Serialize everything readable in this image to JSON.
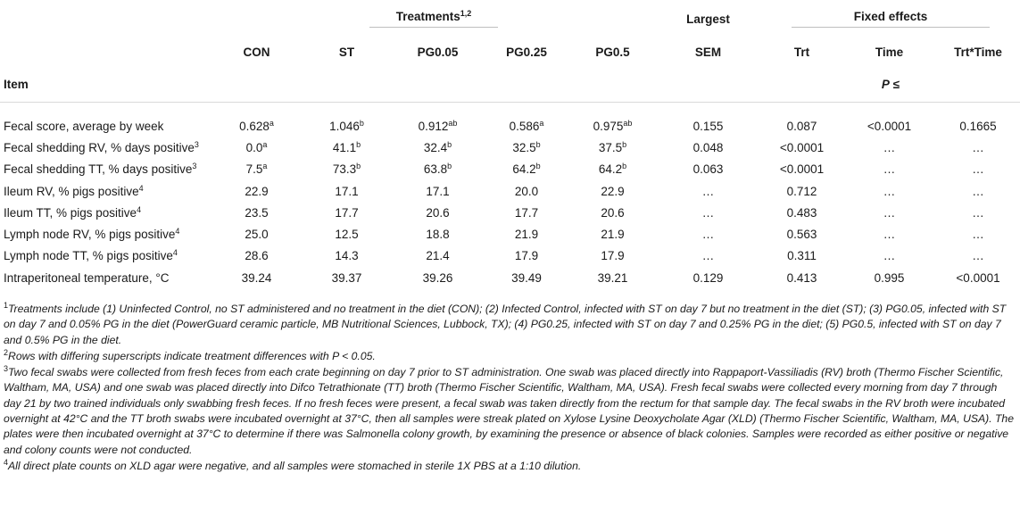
{
  "header": {
    "treatments_label": "Treatments",
    "treatments_sup": "1,2",
    "largest_label": "Largest",
    "fixed_effects_label": "Fixed effects",
    "columns": [
      "CON",
      "ST",
      "PG0.05",
      "PG0.25",
      "PG0.5",
      "SEM",
      "Trt",
      "Time",
      "Trt*Time"
    ],
    "item_label": "Item",
    "p_label": "P",
    "p_sign": " ≤"
  },
  "rows": [
    {
      "label": "Fecal score, average by week",
      "label_sup": "",
      "values": [
        "0.628",
        "1.046",
        "0.912",
        "0.586",
        "0.975"
      ],
      "sups": [
        "a",
        "b",
        "ab",
        "a",
        "ab"
      ],
      "sem": "0.155",
      "trt": "0.087",
      "time": "<0.0001",
      "trt_time": "0.1665"
    },
    {
      "label": "Fecal shedding RV, % days positive",
      "label_sup": "3",
      "values": [
        "0.0",
        "41.1",
        "32.4",
        "32.5",
        "37.5"
      ],
      "sups": [
        "a",
        "b",
        "b",
        "b",
        "b"
      ],
      "sem": "0.048",
      "trt": "<0.0001",
      "time": "…",
      "trt_time": "…"
    },
    {
      "label": "Fecal shedding TT, % days positive",
      "label_sup": "3",
      "values": [
        "7.5",
        "73.3",
        "63.8",
        "64.2",
        "64.2"
      ],
      "sups": [
        "a",
        "b",
        "b",
        "b",
        "b"
      ],
      "sem": "0.063",
      "trt": "<0.0001",
      "time": "…",
      "trt_time": "…"
    },
    {
      "label": "Ileum RV, % pigs positive",
      "label_sup": "4",
      "values": [
        "22.9",
        "17.1",
        "17.1",
        "20.0",
        "22.9"
      ],
      "sups": [
        "",
        "",
        "",
        "",
        ""
      ],
      "sem": "…",
      "trt": "0.712",
      "time": "…",
      "trt_time": "…"
    },
    {
      "label": "Ileum TT, % pigs positive",
      "label_sup": "4",
      "values": [
        "23.5",
        "17.7",
        "20.6",
        "17.7",
        "20.6"
      ],
      "sups": [
        "",
        "",
        "",
        "",
        ""
      ],
      "sem": "…",
      "trt": "0.483",
      "time": "…",
      "trt_time": "…"
    },
    {
      "label": "Lymph node RV, % pigs positive",
      "label_sup": "4",
      "values": [
        "25.0",
        "12.5",
        "18.8",
        "21.9",
        "21.9"
      ],
      "sups": [
        "",
        "",
        "",
        "",
        ""
      ],
      "sem": "…",
      "trt": "0.563",
      "time": "…",
      "trt_time": "…"
    },
    {
      "label": "Lymph node TT, % pigs positive",
      "label_sup": "4",
      "values": [
        "28.6",
        "14.3",
        "21.4",
        "17.9",
        "17.9"
      ],
      "sups": [
        "",
        "",
        "",
        "",
        ""
      ],
      "sem": "…",
      "trt": "0.311",
      "time": "…",
      "trt_time": "…"
    },
    {
      "label": "Intraperitoneal temperature, °C",
      "label_sup": "",
      "values": [
        "39.24",
        "39.37",
        "39.26",
        "39.49",
        "39.21"
      ],
      "sups": [
        "",
        "",
        "",
        "",
        ""
      ],
      "sem": "0.129",
      "trt": "0.413",
      "time": "0.995",
      "trt_time": "<0.0001"
    }
  ],
  "footnotes": [
    {
      "sup": "1",
      "text": "Treatments include (1) Uninfected Control, no ST administered and no treatment in the diet (CON); (2) Infected Control, infected with ST on day 7 but no treatment in the diet (ST); (3) PG0.05, infected with ST on day 7 and 0.05% PG in the diet (PowerGuard ceramic particle, MB Nutritional Sciences, Lubbock, TX); (4) PG0.25, infected with ST on day 7 and 0.25% PG in the diet; (5) PG0.5, infected with ST on day 7 and 0.5% PG in the diet."
    },
    {
      "sup": "2",
      "text": "Rows with differing superscripts indicate treatment differences with P < 0.05."
    },
    {
      "sup": "3",
      "text": "Two fecal swabs were collected from fresh feces from each crate beginning on day 7 prior to ST administration. One swab was placed directly into Rappaport-Vassiliadis (RV) broth (Thermo Fischer Scientific, Waltham, MA, USA) and one swab was placed directly into Difco Tetrathionate (TT) broth (Thermo Fischer Scientific, Waltham, MA, USA). Fresh fecal swabs were collected every morning from day 7 through day 21 by two trained individuals only swabbing fresh feces. If no fresh feces were present, a fecal swab was taken directly from the rectum for that sample day. The fecal swabs in the RV broth were incubated overnight at 42°C and the TT broth swabs were incubated overnight at 37°C, then all samples were streak plated on Xylose Lysine Deoxycholate Agar (XLD) (Thermo Fischer Scientific, Waltham, MA, USA). The plates were then incubated overnight at 37°C to determine if there was Salmonella colony growth, by examining the presence or absence of black colonies. Samples were recorded as either positive or negative and colony counts were not conducted."
    },
    {
      "sup": "4",
      "text": "All direct plate counts on XLD agar were negative, and all samples were stomached in sterile 1X PBS at a 1:10 dilution."
    }
  ]
}
